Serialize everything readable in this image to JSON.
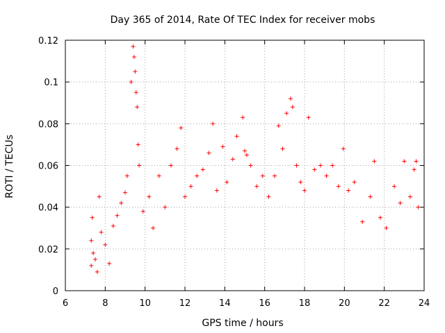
{
  "chart_data": {
    "type": "scatter",
    "title": "Day 365 of 2014, Rate Of TEC Index for receiver mobs",
    "xlabel": "GPS time / hours",
    "ylabel": "ROTI / TECUs",
    "xlim": [
      6,
      24
    ],
    "ylim": [
      0,
      0.12
    ],
    "xticks": [
      6,
      8,
      10,
      12,
      14,
      16,
      18,
      20,
      22,
      24
    ],
    "xtick_labels": [
      "6",
      "8",
      "10",
      "12",
      "14",
      "16",
      "18",
      "20",
      "22",
      "24"
    ],
    "yticks": [
      0,
      0.02,
      0.04,
      0.06,
      0.08,
      0.1,
      0.12
    ],
    "ytick_labels": [
      "0",
      "0.02",
      "0.04",
      "0.06",
      "0.08",
      "0.1",
      "0.12"
    ],
    "grid": true,
    "marker": "plus",
    "color": "#ff0000",
    "series": [
      {
        "name": "ROTI",
        "points": [
          [
            7.3,
            0.012
          ],
          [
            7.3,
            0.024
          ],
          [
            7.35,
            0.035
          ],
          [
            7.4,
            0.018
          ],
          [
            7.5,
            0.015
          ],
          [
            7.6,
            0.009
          ],
          [
            7.7,
            0.045
          ],
          [
            7.8,
            0.028
          ],
          [
            8.0,
            0.022
          ],
          [
            8.2,
            0.013
          ],
          [
            8.4,
            0.031
          ],
          [
            8.6,
            0.036
          ],
          [
            8.8,
            0.042
          ],
          [
            9.0,
            0.047
          ],
          [
            9.1,
            0.055
          ],
          [
            9.3,
            0.1
          ],
          [
            9.4,
            0.117
          ],
          [
            9.45,
            0.112
          ],
          [
            9.5,
            0.105
          ],
          [
            9.55,
            0.095
          ],
          [
            9.6,
            0.088
          ],
          [
            9.65,
            0.07
          ],
          [
            9.7,
            0.06
          ],
          [
            9.9,
            0.038
          ],
          [
            10.2,
            0.045
          ],
          [
            10.4,
            0.03
          ],
          [
            10.7,
            0.055
          ],
          [
            11.0,
            0.04
          ],
          [
            11.3,
            0.06
          ],
          [
            11.6,
            0.068
          ],
          [
            11.8,
            0.078
          ],
          [
            12.0,
            0.045
          ],
          [
            12.3,
            0.05
          ],
          [
            12.6,
            0.055
          ],
          [
            12.9,
            0.058
          ],
          [
            13.2,
            0.066
          ],
          [
            13.4,
            0.08
          ],
          [
            13.6,
            0.048
          ],
          [
            13.9,
            0.069
          ],
          [
            14.1,
            0.052
          ],
          [
            14.4,
            0.063
          ],
          [
            14.6,
            0.074
          ],
          [
            14.9,
            0.083
          ],
          [
            15.0,
            0.067
          ],
          [
            15.1,
            0.065
          ],
          [
            15.3,
            0.06
          ],
          [
            15.6,
            0.05
          ],
          [
            15.9,
            0.055
          ],
          [
            16.2,
            0.045
          ],
          [
            16.5,
            0.055
          ],
          [
            16.7,
            0.079
          ],
          [
            16.9,
            0.068
          ],
          [
            17.1,
            0.085
          ],
          [
            17.3,
            0.092
          ],
          [
            17.4,
            0.088
          ],
          [
            17.6,
            0.06
          ],
          [
            17.8,
            0.052
          ],
          [
            18.0,
            0.048
          ],
          [
            18.2,
            0.083
          ],
          [
            18.5,
            0.058
          ],
          [
            18.8,
            0.06
          ],
          [
            19.1,
            0.055
          ],
          [
            19.4,
            0.06
          ],
          [
            19.7,
            0.05
          ],
          [
            19.95,
            0.068
          ],
          [
            20.2,
            0.048
          ],
          [
            20.5,
            0.052
          ],
          [
            20.9,
            0.033
          ],
          [
            21.3,
            0.045
          ],
          [
            21.5,
            0.062
          ],
          [
            21.8,
            0.035
          ],
          [
            22.1,
            0.03
          ],
          [
            22.5,
            0.05
          ],
          [
            22.8,
            0.042
          ],
          [
            23.0,
            0.062
          ],
          [
            23.3,
            0.045
          ],
          [
            23.5,
            0.058
          ],
          [
            23.6,
            0.062
          ],
          [
            23.7,
            0.04
          ]
        ]
      }
    ]
  }
}
